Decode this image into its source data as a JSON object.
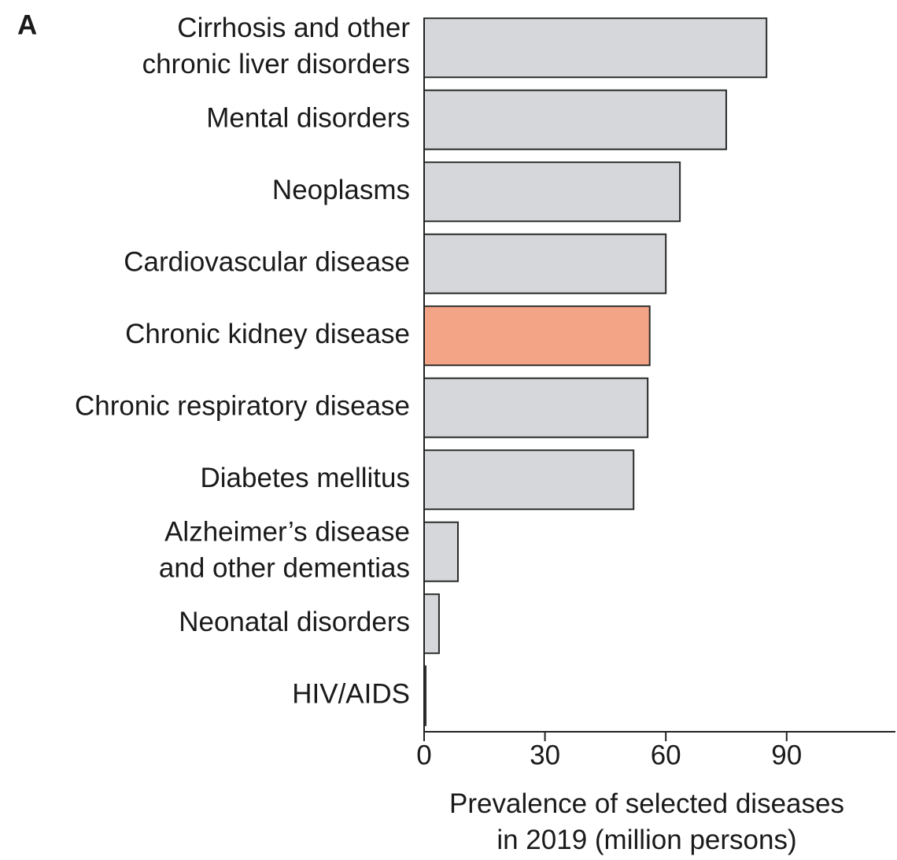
{
  "chart_data": {
    "type": "barh",
    "panel_label": "A",
    "x_label": "Prevalence of selected diseases\nin 2019 (million persons)",
    "categories": [
      "Cirrhosis and other\nchronic liver disorders",
      "Mental disorders",
      "Neoplasms",
      "Cardiovascular disease",
      "Chronic kidney disease",
      "Chronic respiratory disease",
      "Diabetes mellitus",
      "Alzheimer’s disease\nand other dementias",
      "Neonatal disorders",
      "HIV/AIDS"
    ],
    "values": [
      85,
      75,
      63.5,
      60,
      56,
      55.5,
      52,
      8.4,
      3.7,
      0.4
    ],
    "colors": [
      "#d5d7da",
      "#d5d7da",
      "#d5d7da",
      "#d5d7da",
      "#f3a486",
      "#d5d7da",
      "#d5d7da",
      "#d5d7da",
      "#d5d7da",
      "#d5d7da"
    ],
    "xlim": [
      0,
      117
    ],
    "xticks": [
      0,
      30,
      60,
      90
    ]
  }
}
